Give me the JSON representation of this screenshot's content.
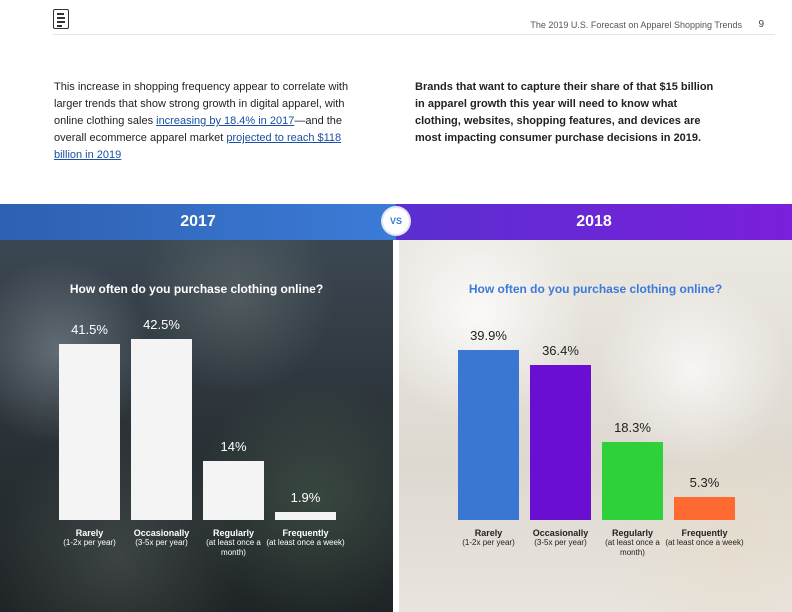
{
  "header": {
    "title": "The 2019 U.S. Forecast on Apparel Shopping Trends",
    "page_number": "9"
  },
  "text": {
    "left_a": "This increase in shopping frequency appear to correlate with larger trends that show strong growth in digital apparel, with online clothing sales ",
    "left_link1": "increasing by 18.4% in 2017",
    "left_b": "—and the overall ecommerce apparel market ",
    "left_link2": "projected to reach $118 billion in 2019",
    "right": "Brands that want to capture their share of that $15 billion in apparel growth this year will need to know what clothing, websites, shopping features, and devices are most impacting consumer purchase decisions in 2019."
  },
  "vs_label": "VS",
  "chart_data": [
    {
      "type": "bar",
      "year": "2017",
      "title": "How often do you purchase clothing online?",
      "categories": [
        "Rarely",
        "Occasionally",
        "Regularly",
        "Frequently"
      ],
      "category_sublabels": [
        "(1-2x per year)",
        "(3-5x per year)",
        "(at least once a month)",
        "(at least once a week)"
      ],
      "values": [
        41.5,
        42.5,
        14,
        1.9
      ],
      "value_labels": [
        "41.5%",
        "42.5%",
        "14%",
        "1.9%"
      ],
      "colors": [
        "#f4f4f4",
        "#f4f4f4",
        "#f4f4f4",
        "#f4f4f4"
      ]
    },
    {
      "type": "bar",
      "year": "2018",
      "title": "How often do you purchase clothing online?",
      "categories": [
        "Rarely",
        "Occasionally",
        "Regularly",
        "Frequently"
      ],
      "category_sublabels": [
        "(1-2x per year)",
        "(3-5x per year)",
        "(at least once a month)",
        "(at least once a week)"
      ],
      "values": [
        39.9,
        36.4,
        18.3,
        5.3
      ],
      "value_labels": [
        "39.9%",
        "36.4%",
        "18.3%",
        "5.3%"
      ],
      "colors": [
        "#3a77d2",
        "#6a0fd2",
        "#2fd13b",
        "#ff6a33"
      ]
    }
  ]
}
